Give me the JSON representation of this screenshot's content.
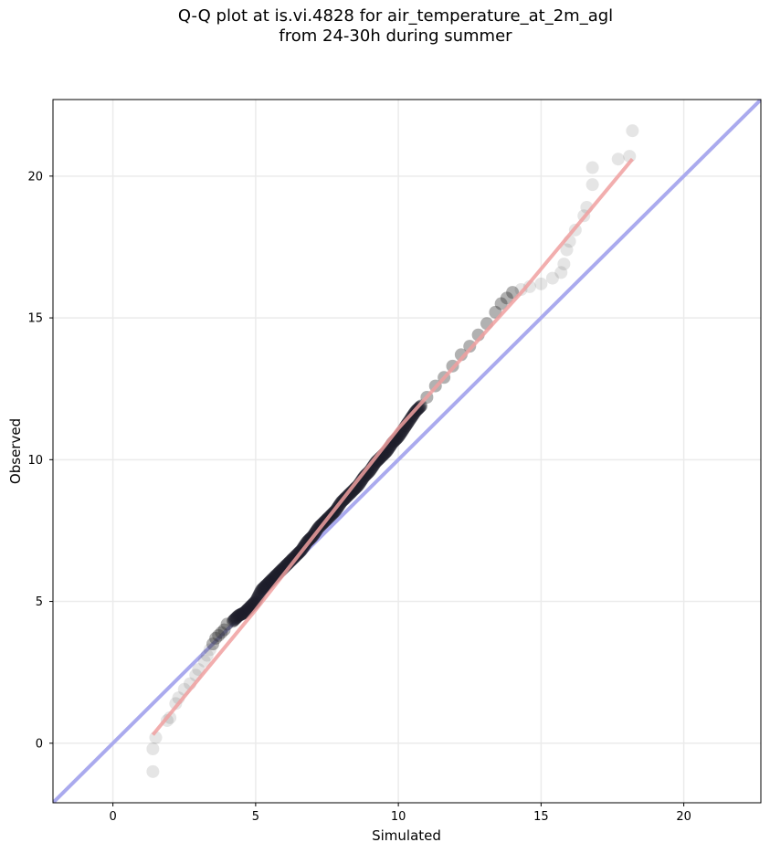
{
  "chart_data": {
    "type": "scatter",
    "title_line1": "Q-Q plot at is.vi.4828 for air_temperature_at_2m_agl",
    "title_line2": "from 24-30h during summer",
    "xlabel": "Simulated",
    "ylabel": "Observed",
    "xlim": [
      -2.1,
      22.7
    ],
    "ylim": [
      -2.1,
      22.7
    ],
    "xticks": [
      0,
      5,
      10,
      15,
      20
    ],
    "yticks": [
      0,
      5,
      10,
      15,
      20
    ],
    "grid": true,
    "reference_line": {
      "x": [
        -2.1,
        22.7
      ],
      "y": [
        -2.1,
        22.7
      ],
      "color": "#aaaaee"
    },
    "fit_line": {
      "x": [
        1.4,
        5.0,
        10.0,
        14.4,
        18.2
      ],
      "y": [
        0.3,
        4.7,
        11.1,
        16.0,
        20.6
      ],
      "color": "#f0a0a0"
    },
    "points": {
      "color": "#333333",
      "x": [
        1.4,
        1.4,
        1.5,
        1.9,
        2.0,
        2.2,
        2.3,
        2.5,
        2.7,
        2.9,
        3.0,
        3.2,
        3.3,
        3.4,
        3.5,
        3.6,
        3.7,
        3.8,
        3.9,
        4.0,
        4.2,
        4.4,
        4.6,
        4.8,
        5.0,
        5.2,
        5.4,
        5.6,
        5.8,
        6.0,
        6.2,
        6.4,
        6.6,
        6.8,
        7.0,
        7.2,
        7.4,
        7.6,
        7.8,
        8.0,
        8.2,
        8.4,
        8.6,
        8.8,
        9.0,
        9.2,
        9.4,
        9.6,
        9.8,
        10.0,
        10.2,
        10.4,
        10.6,
        10.8,
        11.0,
        11.3,
        11.6,
        11.9,
        12.2,
        12.5,
        12.8,
        13.1,
        13.4,
        13.6,
        13.8,
        14.0,
        14.3,
        14.6,
        15.0,
        15.4,
        15.7,
        15.8,
        15.9,
        16.0,
        16.2,
        16.5,
        16.6,
        16.8,
        16.8,
        17.7,
        18.1,
        18.2
      ],
      "y": [
        -1.0,
        -0.2,
        0.2,
        0.8,
        0.9,
        1.4,
        1.6,
        1.9,
        2.1,
        2.4,
        2.6,
        2.9,
        3.1,
        3.3,
        3.5,
        3.7,
        3.8,
        3.9,
        4.0,
        4.2,
        4.3,
        4.5,
        4.6,
        4.8,
        5.0,
        5.4,
        5.6,
        5.8,
        6.0,
        6.2,
        6.4,
        6.6,
        6.8,
        7.1,
        7.3,
        7.6,
        7.8,
        8.0,
        8.2,
        8.5,
        8.7,
        8.9,
        9.1,
        9.4,
        9.6,
        9.9,
        10.1,
        10.3,
        10.6,
        10.8,
        11.1,
        11.4,
        11.7,
        11.9,
        12.2,
        12.6,
        12.9,
        13.3,
        13.7,
        14.0,
        14.4,
        14.8,
        15.2,
        15.5,
        15.7,
        15.9,
        16.0,
        16.1,
        16.2,
        16.4,
        16.6,
        16.9,
        17.4,
        17.7,
        18.1,
        18.6,
        18.9,
        19.7,
        20.3,
        20.6,
        20.7,
        21.6
      ]
    }
  }
}
